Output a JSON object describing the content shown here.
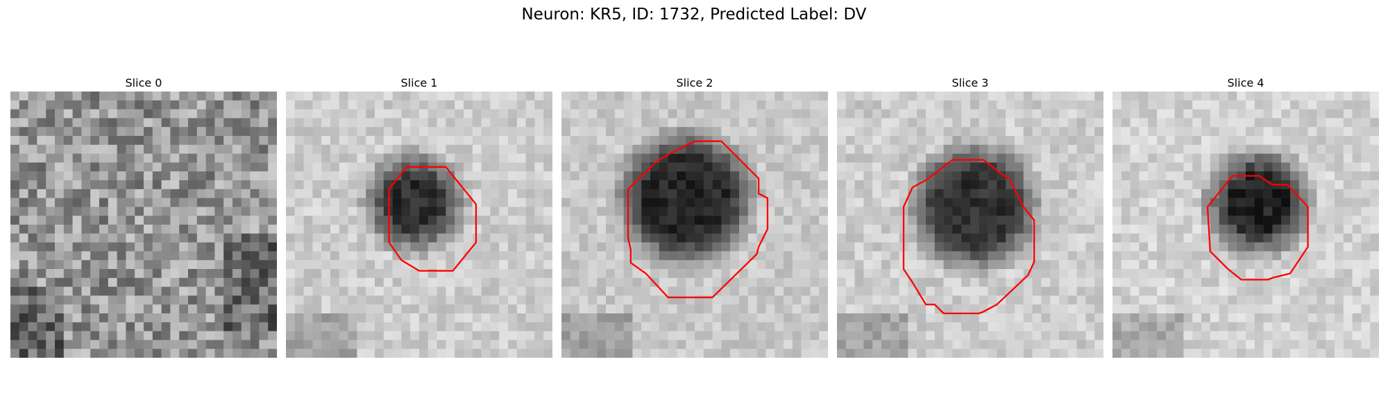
{
  "figure": {
    "title": "Neuron: KR5, ID: 1732, Predicted Label: DV"
  },
  "panels": [
    {
      "title": "Slice 0",
      "has_contour": false
    },
    {
      "title": "Slice 1",
      "has_contour": true
    },
    {
      "title": "Slice 2",
      "has_contour": true
    },
    {
      "title": "Slice 3",
      "has_contour": true
    },
    {
      "title": "Slice 4",
      "has_contour": true
    }
  ],
  "colors": {
    "contour": "#ff0000"
  }
}
